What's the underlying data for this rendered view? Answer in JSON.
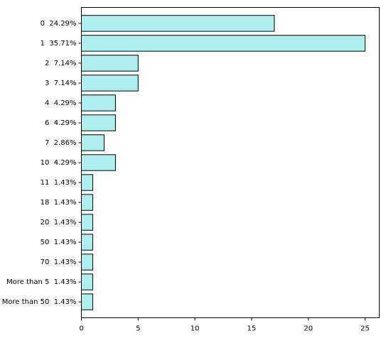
{
  "chart_data": {
    "type": "bar",
    "orientation": "horizontal",
    "categories": [
      "0  24.29%",
      "1  35.71%",
      "2  7.14%",
      "3  7.14%",
      "4  4.29%",
      "6  4.29%",
      "7  2.86%",
      "10  4.29%",
      "11  1.43%",
      "18  1.43%",
      "20  1.43%",
      "50  1.43%",
      "70  1.43%",
      "More than 5  1.43%",
      "More than 50  1.43%"
    ],
    "values": [
      17,
      25,
      5,
      5,
      3,
      3,
      2,
      3,
      1,
      1,
      1,
      1,
      1,
      1,
      1
    ],
    "xticks": [
      "0",
      "5",
      "10",
      "15",
      "20",
      "25"
    ],
    "xlim": [
      0,
      26.25
    ],
    "title": "",
    "xlabel": "",
    "ylabel": "",
    "grid": false,
    "colors": {
      "bar_fill": "#afeeee",
      "bar_edge": "#000000",
      "axis": "#000000"
    }
  }
}
